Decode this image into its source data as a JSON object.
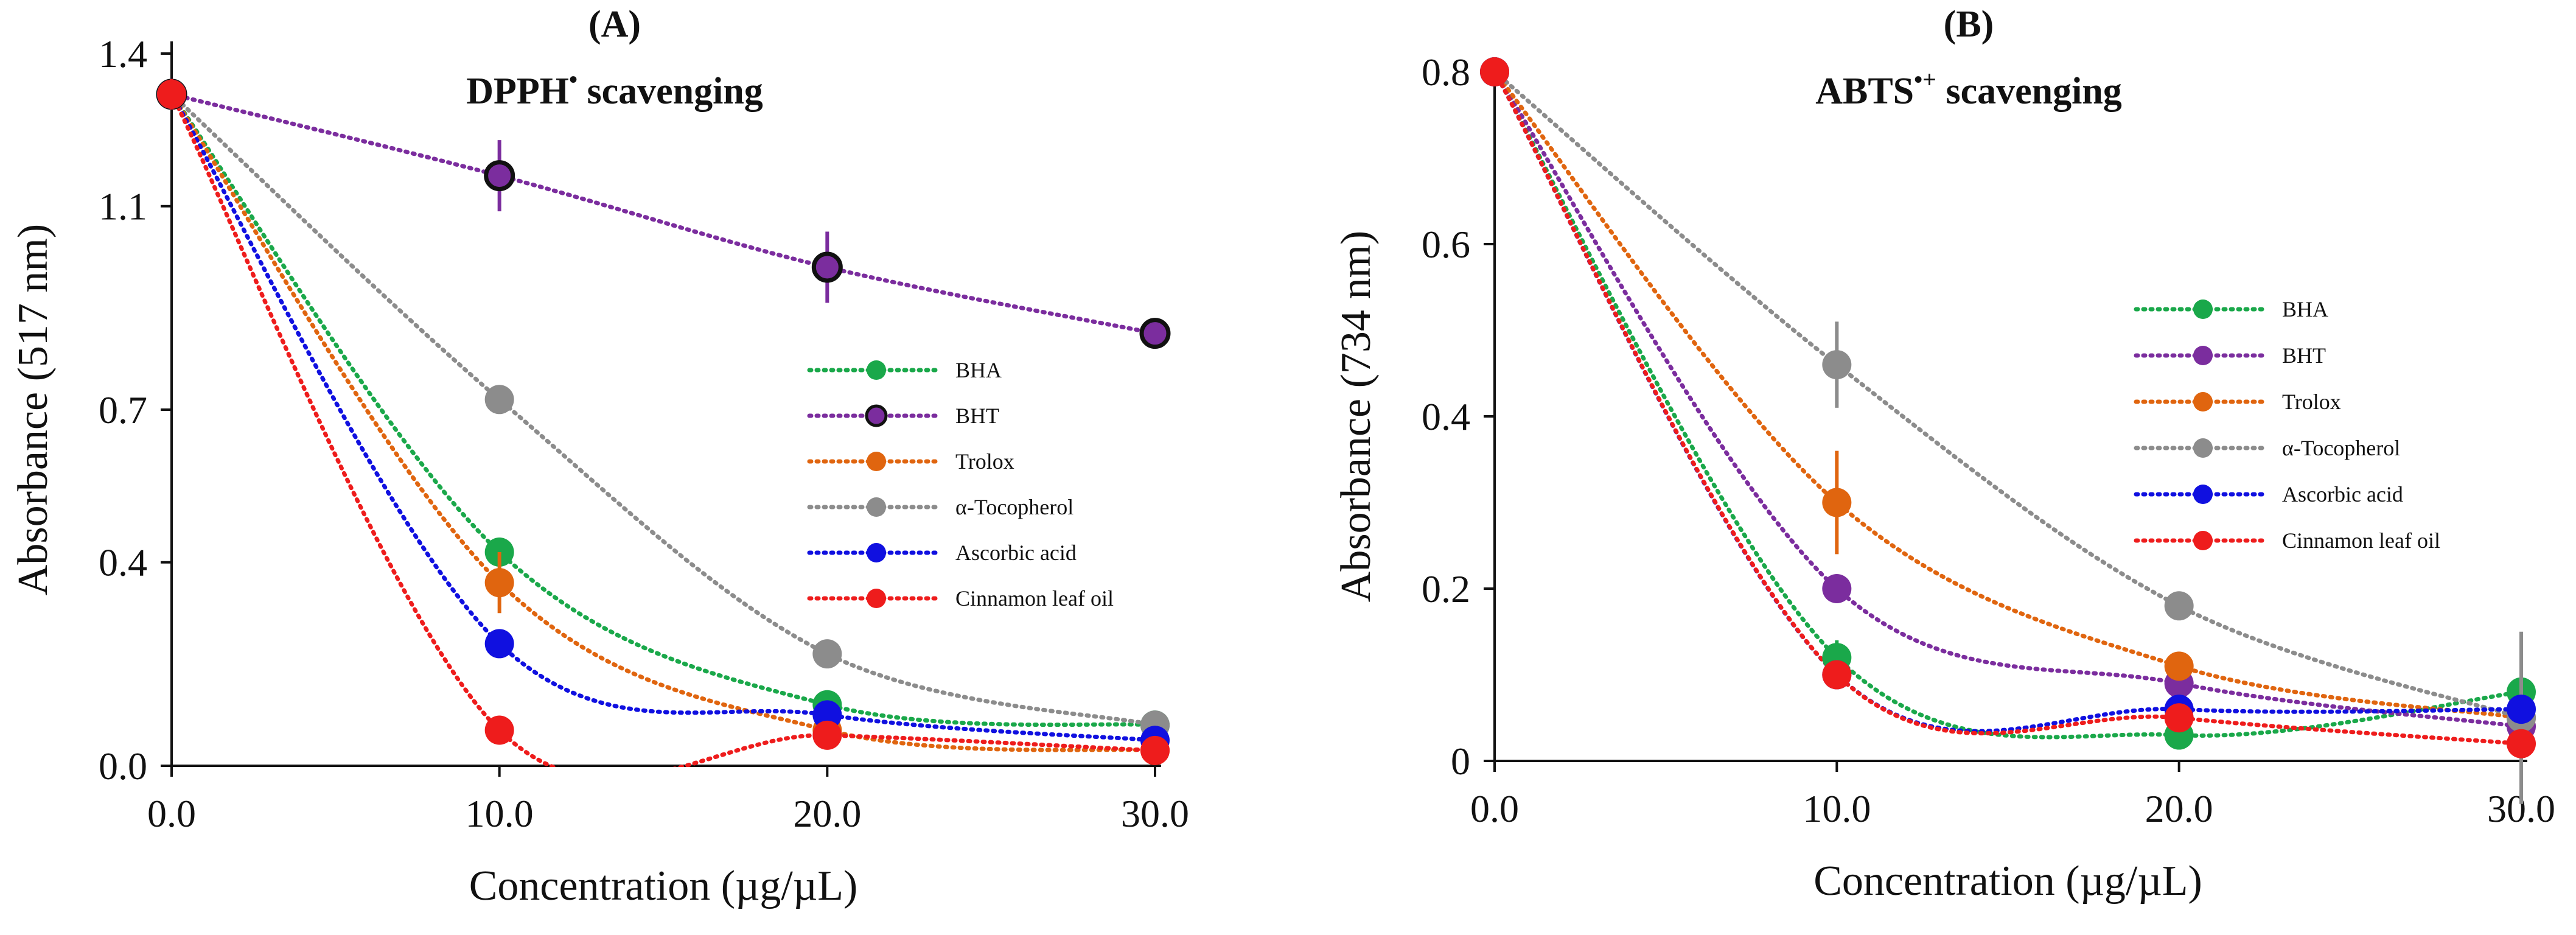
{
  "chart_data": [
    {
      "type": "line",
      "panel": "(A)",
      "title": "DPPH",
      "title_sup": "•",
      "title_suffix": " scavenging",
      "xlabel": "Concentration (µg/µL)",
      "ylabel": "Absorbance (517 nm)",
      "x": [
        0,
        10,
        20,
        30
      ],
      "xticks": [
        "0.0",
        "10.0",
        "20.0",
        "30.0"
      ],
      "yticks": [
        0.0,
        0.4,
        0.7,
        1.1,
        1.4
      ],
      "ytick_labels": [
        "0.0",
        "0.4",
        "0.7",
        "1.1",
        "1.4"
      ],
      "xlim": [
        0,
        30
      ],
      "ylim": [
        0,
        1.4
      ],
      "legend_position": "center-right",
      "series": [
        {
          "name": "BHA",
          "color": "#1aa84a",
          "marker_edge": "none",
          "values": [
            1.32,
            0.42,
            0.12,
            0.08
          ],
          "errors": [
            0.03,
            0.01,
            0.01,
            0.01
          ]
        },
        {
          "name": "BHT",
          "color": "#7b2d9e",
          "marker_edge": "#111111",
          "values": [
            1.32,
            1.16,
            0.98,
            0.85
          ],
          "errors": [
            0.03,
            0.07,
            0.07,
            0.01
          ]
        },
        {
          "name": "Trolox",
          "color": "#e0650f",
          "marker_edge": "none",
          "values": [
            1.32,
            0.36,
            0.07,
            0.03
          ],
          "errors": [
            0.03,
            0.06,
            0.01,
            0.01
          ]
        },
        {
          "name": "α-Tocopherol",
          "color": "#8c8c8c",
          "marker_edge": "none",
          "values": [
            1.32,
            0.72,
            0.22,
            0.08
          ],
          "errors": [
            0.03,
            0.01,
            0.01,
            0.01
          ]
        },
        {
          "name": "Ascorbic acid",
          "color": "#1010e0",
          "marker_edge": "none",
          "values": [
            1.32,
            0.24,
            0.1,
            0.05
          ],
          "errors": [
            0.03,
            0.01,
            0.01,
            0.01
          ]
        },
        {
          "name": "Cinnamon leaf oil",
          "color": "#ee1c1c",
          "marker_edge": "none",
          "values": [
            1.32,
            0.07,
            0.06,
            0.03
          ],
          "errors": [
            0.03,
            0.01,
            0.01,
            0.01
          ]
        }
      ]
    },
    {
      "type": "line",
      "panel": "(B)",
      "title": "ABTS",
      "title_sup": "•+",
      "title_suffix": " scavenging",
      "xlabel": "Concentration (µg/µL)",
      "ylabel": "Absorbance (734 nm)",
      "x": [
        0,
        10,
        20,
        30
      ],
      "xticks": [
        "0.0",
        "10.0",
        "20.0",
        "30.0"
      ],
      "yticks": [
        0,
        0.2,
        0.4,
        0.6,
        0.8
      ],
      "ytick_labels": [
        "0",
        "0.2",
        "0.4",
        "0.6",
        "0.8"
      ],
      "xlim": [
        0,
        30
      ],
      "ylim": [
        0,
        0.8
      ],
      "legend_position": "right",
      "series": [
        {
          "name": "BHA",
          "color": "#1aa84a",
          "marker_edge": "none",
          "values": [
            0.8,
            0.12,
            0.03,
            0.08
          ],
          "errors": [
            0.01,
            0.02,
            0.01,
            0.01
          ]
        },
        {
          "name": "BHT",
          "color": "#7b2d9e",
          "marker_edge": "none",
          "values": [
            0.8,
            0.2,
            0.09,
            0.04
          ],
          "errors": [
            0.01,
            0.01,
            0.01,
            0.01
          ]
        },
        {
          "name": "Trolox",
          "color": "#e0650f",
          "marker_edge": "none",
          "values": [
            0.8,
            0.3,
            0.11,
            0.05
          ],
          "errors": [
            0.01,
            0.06,
            0.01,
            0.01
          ]
        },
        {
          "name": "α-Tocopherol",
          "color": "#8c8c8c",
          "marker_edge": "none",
          "values": [
            0.8,
            0.46,
            0.18,
            0.05
          ],
          "errors": [
            0.01,
            0.05,
            0.01,
            0.1
          ]
        },
        {
          "name": "Ascorbic acid",
          "color": "#1010e0",
          "marker_edge": "none",
          "values": [
            0.8,
            0.1,
            0.06,
            0.06
          ],
          "errors": [
            0.01,
            0.01,
            0.01,
            0.01
          ]
        },
        {
          "name": "Cinnamon leaf oil",
          "color": "#ee1c1c",
          "marker_edge": "none",
          "values": [
            0.8,
            0.1,
            0.05,
            0.02
          ],
          "errors": [
            0.01,
            0.01,
            0.01,
            0.01
          ]
        }
      ]
    }
  ]
}
